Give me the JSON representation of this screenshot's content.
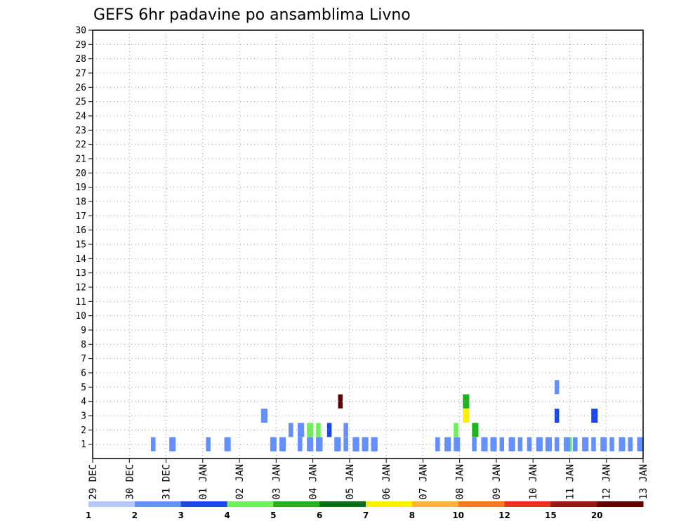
{
  "chart_data": {
    "type": "heatmap",
    "title": "GEFS 6hr padavine po ansamblima Livno",
    "x_tick_labels": [
      "29 DEC",
      "30 DEC",
      "31 DEC",
      "01 JAN",
      "02 JAN",
      "03 JAN",
      "04 JAN",
      "05 JAN",
      "06 JAN",
      "07 JAN",
      "08 JAN",
      "09 JAN",
      "10 JAN",
      "11 JAN",
      "12 JAN",
      "13 JAN"
    ],
    "y_tick_labels": [
      "1",
      "2",
      "3",
      "4",
      "5",
      "6",
      "7",
      "8",
      "9",
      "10",
      "11",
      "12",
      "13",
      "14",
      "15",
      "16",
      "17",
      "18",
      "19",
      "20",
      "21",
      "22",
      "23",
      "24",
      "25",
      "26",
      "27",
      "28",
      "29",
      "30"
    ],
    "legend_labels": [
      "1",
      "2",
      "3",
      "4",
      "5",
      "6",
      "7",
      "8",
      "10",
      "12",
      "15",
      "20"
    ],
    "legend_colors": [
      "#b4c8ff",
      "#6490ff",
      "#1e48e6",
      "#6ef05a",
      "#1eb41e",
      "#0a6e14",
      "#fff000",
      "#ffb432",
      "#ff7814",
      "#e6321e",
      "#a01414",
      "#640000"
    ],
    "x_range": [
      0,
      60
    ],
    "y_range": [
      0,
      30
    ],
    "cells": [
      [
        50.6,
        5,
        1
      ],
      [
        51.8,
        1,
        3
      ],
      [
        52.0,
        1,
        3
      ],
      [
        39.6,
        2,
        3
      ],
      [
        40.6,
        3,
        6
      ],
      [
        40.8,
        3,
        6
      ],
      [
        41.6,
        2,
        4
      ],
      [
        41.8,
        2,
        4
      ],
      [
        27.0,
        4,
        11
      ],
      [
        40.6,
        4,
        4
      ],
      [
        40.8,
        4,
        4
      ],
      [
        50.6,
        3,
        2
      ],
      [
        54.6,
        3,
        2
      ],
      [
        54.8,
        3,
        2
      ],
      [
        22.6,
        1,
        1
      ],
      [
        23.6,
        1,
        1
      ],
      [
        23.8,
        1,
        1
      ],
      [
        24.6,
        2,
        3
      ],
      [
        25.8,
        2,
        2
      ],
      [
        26.6,
        1,
        1
      ],
      [
        26.8,
        1,
        1
      ],
      [
        27.6,
        2,
        1
      ],
      [
        28.6,
        1,
        1
      ],
      [
        28.8,
        1,
        1
      ],
      [
        29.6,
        1,
        1
      ],
      [
        29.8,
        1,
        1
      ],
      [
        30.6,
        1,
        1
      ],
      [
        30.8,
        1,
        1
      ],
      [
        22.6,
        2,
        1
      ],
      [
        23.6,
        2,
        3
      ],
      [
        23.8,
        2,
        3
      ],
      [
        24.6,
        1,
        1
      ],
      [
        24.8,
        1,
        1
      ],
      [
        27.6,
        1,
        1
      ],
      [
        28.6,
        1,
        1
      ],
      [
        28.8,
        1,
        1
      ],
      [
        30.6,
        1,
        1
      ],
      [
        30.8,
        1,
        1
      ],
      [
        6.6,
        1,
        1
      ],
      [
        8.6,
        1,
        1
      ],
      [
        8.8,
        1,
        1
      ],
      [
        12.6,
        1,
        1
      ],
      [
        14.6,
        1,
        1
      ],
      [
        14.8,
        1,
        1
      ],
      [
        18.6,
        3,
        1
      ],
      [
        18.8,
        3,
        1
      ],
      [
        19.6,
        1,
        1
      ],
      [
        19.8,
        1,
        1
      ],
      [
        20.6,
        1,
        1
      ],
      [
        20.8,
        1,
        1
      ],
      [
        21.6,
        2,
        1
      ],
      [
        22.6,
        2,
        1
      ],
      [
        22.8,
        2,
        1
      ],
      [
        24.6,
        1,
        1
      ],
      [
        24.8,
        1,
        1
      ],
      [
        26.6,
        1,
        1
      ],
      [
        28.6,
        1,
        1
      ],
      [
        28.8,
        1,
        1
      ],
      [
        37.6,
        1,
        1
      ],
      [
        38.6,
        1,
        1
      ],
      [
        38.8,
        1,
        1
      ],
      [
        39.6,
        1,
        1
      ],
      [
        39.8,
        1,
        1
      ],
      [
        41.6,
        1,
        1
      ],
      [
        42.6,
        1,
        1
      ],
      [
        42.8,
        1,
        1
      ],
      [
        43.6,
        1,
        1
      ],
      [
        43.8,
        1,
        1
      ],
      [
        44.6,
        1,
        1
      ],
      [
        45.6,
        1,
        1
      ],
      [
        45.8,
        1,
        1
      ],
      [
        46.6,
        1,
        1
      ],
      [
        47.6,
        1,
        1
      ],
      [
        48.6,
        1,
        1
      ],
      [
        48.8,
        1,
        1
      ],
      [
        49.6,
        1,
        1
      ],
      [
        49.8,
        1,
        1
      ],
      [
        50.6,
        1,
        1
      ],
      [
        51.6,
        1,
        1
      ],
      [
        51.8,
        1,
        1
      ],
      [
        52.6,
        1,
        1
      ],
      [
        53.6,
        1,
        1
      ],
      [
        53.8,
        1,
        1
      ],
      [
        54.6,
        1,
        1
      ],
      [
        55.6,
        1,
        1
      ],
      [
        55.8,
        1,
        1
      ],
      [
        56.6,
        1,
        1
      ],
      [
        57.6,
        1,
        1
      ],
      [
        57.8,
        1,
        1
      ],
      [
        58.6,
        1,
        1
      ],
      [
        59.6,
        1,
        1
      ],
      [
        59.8,
        1,
        1
      ]
    ]
  }
}
